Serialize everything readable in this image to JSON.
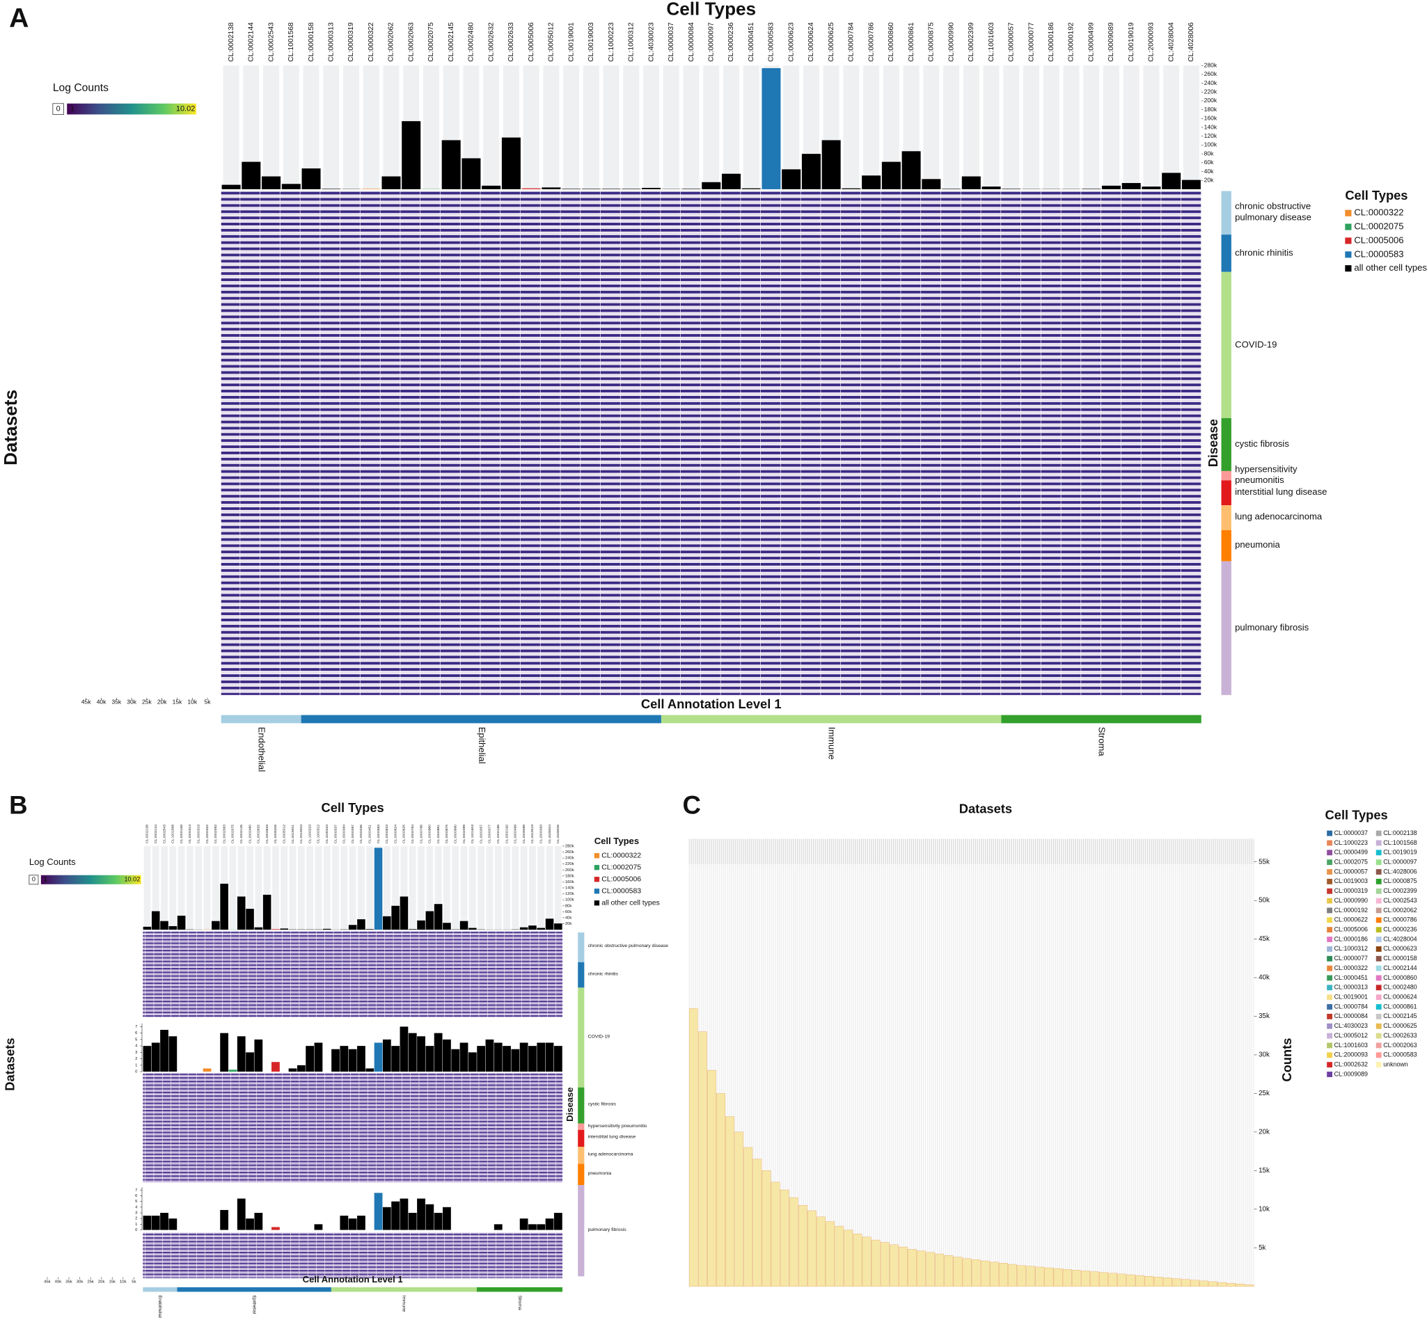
{
  "chart_data": [
    {
      "panel": "A",
      "type": "bar",
      "title": "Cell Types",
      "categories": [
        "CL:0002138",
        "CL:0002144",
        "CL:0002543",
        "CL:1001568",
        "CL:0000158",
        "CL:0000313",
        "CL:0000319",
        "CL:0000322",
        "CL:0002062",
        "CL:0002063",
        "CL:0002075",
        "CL:0002145",
        "CL:0002480",
        "CL:0002632",
        "CL:0002633",
        "CL:0005006",
        "CL:0005012",
        "CL:0019001",
        "CL:0019003",
        "CL:1000223",
        "CL:1000312",
        "CL:4030023",
        "CL:0000037",
        "CL:0000084",
        "CL:0000097",
        "CL:0000236",
        "CL:0000451",
        "CL:0000583",
        "CL:0000623",
        "CL:0000624",
        "CL:0000625",
        "CL:0000784",
        "CL:0000786",
        "CL:0000860",
        "CL:0000861",
        "CL:0000875",
        "CL:0000990",
        "CL:0002399",
        "CL:1001603",
        "CL:0000057",
        "CL:0000077",
        "CL:0000186",
        "CL:0000192",
        "CL:0000499",
        "CL:0009089",
        "CL:0019019",
        "CL:2000093",
        "CL:4028004",
        "CL:4028006"
      ],
      "values": [
        10000,
        62000,
        29000,
        12000,
        47000,
        1000,
        500,
        1000,
        29000,
        154000,
        500,
        111000,
        70000,
        8000,
        117000,
        2000,
        4000,
        1000,
        1000,
        1000,
        1000,
        3000,
        500,
        1000,
        16000,
        35000,
        2000,
        274000,
        45000,
        80000,
        111000,
        2000,
        31000,
        62000,
        86000,
        23000,
        1000,
        29000,
        6000,
        1000,
        500,
        500,
        500,
        1000,
        8000,
        14000,
        6000,
        37000,
        21000
      ],
      "ylim": [
        0,
        280000
      ],
      "yticks": [
        {
          "value": 20000,
          "label": "20k"
        },
        {
          "value": 40000,
          "label": "40k"
        },
        {
          "value": 60000,
          "label": "60k"
        },
        {
          "value": 80000,
          "label": "80k"
        },
        {
          "value": 100000,
          "label": "100k"
        },
        {
          "value": 120000,
          "label": "120k"
        },
        {
          "value": 140000,
          "label": "140k"
        },
        {
          "value": 160000,
          "label": "160k"
        },
        {
          "value": 180000,
          "label": "180k"
        },
        {
          "value": 200000,
          "label": "200k"
        },
        {
          "value": 220000,
          "label": "220k"
        },
        {
          "value": 240000,
          "label": "240k"
        },
        {
          "value": 260000,
          "label": "260k"
        },
        {
          "value": 280000,
          "label": "280k"
        }
      ],
      "ylabel": "Datasets",
      "xlabel": "Cell Annotation Level 1",
      "disease_label": "Disease",
      "xlim": [
        0,
        50000
      ],
      "xticks": [
        {
          "value": 45000,
          "label": "45k"
        },
        {
          "value": 40000,
          "label": "40k"
        },
        {
          "value": 35000,
          "label": "35k"
        },
        {
          "value": 30000,
          "label": "30k"
        },
        {
          "value": 25000,
          "label": "25k"
        },
        {
          "value": 20000,
          "label": "20k"
        },
        {
          "value": 15000,
          "label": "15k"
        },
        {
          "value": 10000,
          "label": "10k"
        },
        {
          "value": 5000,
          "label": "5k"
        }
      ],
      "colorbar": {
        "title": "Log Counts",
        "zero": 0,
        "min": 1,
        "max": 10.02
      },
      "legend": {
        "title": "Cell Types",
        "entries": [
          {
            "name": "CL:0000322",
            "color": "#f28e2b"
          },
          {
            "name": "CL:0002075",
            "color": "#2ca25f"
          },
          {
            "name": "CL:0005006",
            "color": "#d62728"
          },
          {
            "name": "CL:0000583",
            "color": "#1f77b4"
          },
          {
            "name": "all other cell types",
            "color": "#000000"
          }
        ]
      },
      "diseases": [
        {
          "name": "chronic obstructive pulmonary disease",
          "color": "#a6cee3",
          "n_datasets": 14
        },
        {
          "name": "chronic rhinitis",
          "color": "#1f78b4",
          "n_datasets": 12
        },
        {
          "name": "COVID-19",
          "color": "#b2df8a",
          "n_datasets": 47
        },
        {
          "name": "cystic fibrosis",
          "color": "#33a02c",
          "n_datasets": 17
        },
        {
          "name": "hypersensitivity pneumonitis",
          "color": "#fb9a99",
          "n_datasets": 3
        },
        {
          "name": "interstitial lung disease",
          "color": "#e31a1c",
          "n_datasets": 8
        },
        {
          "name": "lung adenocarcinoma",
          "color": "#fdbf6f",
          "n_datasets": 8
        },
        {
          "name": "pneumonia",
          "color": "#ff7f00",
          "n_datasets": 10
        },
        {
          "name": "pulmonary fibrosis",
          "color": "#cab2d6",
          "n_datasets": 43
        }
      ],
      "annotation": [
        {
          "name": "Endothelial",
          "color": "#a6cee3",
          "n_cell_types": 4
        },
        {
          "name": "Epithelial",
          "color": "#1f78b4",
          "n_cell_types": 18
        },
        {
          "name": "Immune",
          "color": "#b2df8a",
          "n_cell_types": 17
        },
        {
          "name": "Stroma",
          "color": "#33a02c",
          "n_cell_types": 10
        }
      ]
    },
    {
      "panel": "B",
      "type": "bar",
      "insets": [
        {
          "ylim": [
            0,
            7.5
          ],
          "yticks": [
            0,
            1,
            2,
            3,
            4,
            5,
            6,
            7
          ],
          "values": [
            4,
            4.5,
            6.5,
            5.5,
            0,
            0,
            0,
            0.5,
            0,
            6,
            0.3,
            5.5,
            3,
            5,
            0,
            1.5,
            0,
            0.5,
            1,
            4,
            4.5,
            0,
            3.5,
            4,
            3.5,
            4,
            0.5,
            4.5,
            5,
            4,
            7,
            6,
            5.5,
            4,
            6,
            5,
            3.5,
            4.5,
            3,
            4,
            5,
            4.5,
            4,
            3.5,
            4.5,
            4,
            4.5,
            4.5,
            4
          ]
        },
        {
          "ylim": [
            0,
            7.5
          ],
          "yticks": [
            0,
            1,
            2,
            3,
            4,
            5,
            6,
            7
          ],
          "values": [
            2.5,
            2.5,
            3,
            2,
            0,
            0,
            0,
            0,
            0,
            3.5,
            0,
            5.5,
            2,
            3,
            0,
            0.5,
            0,
            0,
            0,
            0,
            1,
            0,
            0,
            2.5,
            2,
            2.5,
            0,
            6.5,
            4,
            5,
            5.5,
            3,
            5.5,
            4.5,
            3,
            4,
            0,
            0,
            0,
            0,
            0,
            1,
            0,
            0,
            2,
            1,
            1,
            2,
            3
          ]
        }
      ]
    },
    {
      "panel": "C",
      "type": "bar",
      "title": "Datasets",
      "ylabel": "Counts",
      "color": "#f6e7a6",
      "values": [
        36000,
        33000,
        28000,
        25000,
        22000,
        20000,
        18000,
        16500,
        15000,
        13500,
        12500,
        11500,
        10500,
        9800,
        9000,
        8400,
        7800,
        7300,
        6800,
        6400,
        6000,
        5700,
        5400,
        5100,
        4800,
        4600,
        4400,
        4200,
        4000,
        3800,
        3600,
        3450,
        3300,
        3150,
        3000,
        2850,
        2700,
        2600,
        2500,
        2400,
        2300,
        2200,
        2100,
        2000,
        1900,
        1800,
        1700,
        1600,
        1500,
        1400,
        1300,
        1200,
        1100,
        1000,
        900,
        800,
        700,
        600,
        500,
        400,
        300,
        200
      ],
      "ylim": [
        0,
        58000
      ],
      "yticks": [
        {
          "value": 5000,
          "label": "5k"
        },
        {
          "value": 10000,
          "label": "10k"
        },
        {
          "value": 15000,
          "label": "15k"
        },
        {
          "value": 20000,
          "label": "20k"
        },
        {
          "value": 25000,
          "label": "25k"
        },
        {
          "value": 30000,
          "label": "30k"
        },
        {
          "value": 35000,
          "label": "35k"
        },
        {
          "value": 40000,
          "label": "40k"
        },
        {
          "value": 45000,
          "label": "45k"
        },
        {
          "value": 50000,
          "label": "50k"
        },
        {
          "value": 55000,
          "label": "55k"
        }
      ],
      "legend": {
        "title": "Cell Types",
        "entries": [
          {
            "name": "CL:0000037",
            "color": "#2b6ca3"
          },
          {
            "name": "CL:1000223",
            "color": "#e8875a"
          },
          {
            "name": "CL:0000499",
            "color": "#8f4fa0"
          },
          {
            "name": "CL:0002075",
            "color": "#4aa564"
          },
          {
            "name": "CL:0000057",
            "color": "#e8944a"
          },
          {
            "name": "CL:0019003",
            "color": "#a05a2c"
          },
          {
            "name": "CL:0000319",
            "color": "#c6362f"
          },
          {
            "name": "CL:0000990",
            "color": "#e6c84a"
          },
          {
            "name": "CL:0000192",
            "color": "#7f7f7f"
          },
          {
            "name": "CL:0000622",
            "color": "#f0d84a"
          },
          {
            "name": "CL:0005006",
            "color": "#e8823a"
          },
          {
            "name": "CL:0000186",
            "color": "#e377c2"
          },
          {
            "name": "CL:1000312",
            "color": "#9fb6d8"
          },
          {
            "name": "CL:0000077",
            "color": "#2e8b57"
          },
          {
            "name": "CL:0000322",
            "color": "#e8873a"
          },
          {
            "name": "CL:0000451",
            "color": "#3a9a5a"
          },
          {
            "name": "CL:0000313",
            "color": "#3cb4c4"
          },
          {
            "name": "CL:0019001",
            "color": "#f7e08a"
          },
          {
            "name": "CL:0000784",
            "color": "#3b6ea5"
          },
          {
            "name": "CL:0000084",
            "color": "#c0392b"
          },
          {
            "name": "CL:4030023",
            "color": "#9f8fc6"
          },
          {
            "name": "CL:0005012",
            "color": "#c9b0d8"
          },
          {
            "name": "CL:1001603",
            "color": "#b3c76a"
          },
          {
            "name": "CL:2000093",
            "color": "#f2d04a"
          },
          {
            "name": "CL:0002632",
            "color": "#d62728"
          },
          {
            "name": "CL:0009089",
            "color": "#6b3fa0"
          },
          {
            "name": "CL:0002138",
            "color": "#aaaaaa"
          },
          {
            "name": "CL:1001568",
            "color": "#c5b0d5"
          },
          {
            "name": "CL:0019019",
            "color": "#17becf"
          },
          {
            "name": "CL:0000097",
            "color": "#98df8a"
          },
          {
            "name": "CL:4028006",
            "color": "#8c564b"
          },
          {
            "name": "CL:0000875",
            "color": "#2ca02c"
          },
          {
            "name": "CL:0002399",
            "color": "#a4d49a"
          },
          {
            "name": "CL:0002543",
            "color": "#f7b6d2"
          },
          {
            "name": "CL:0002062",
            "color": "#c49c94"
          },
          {
            "name": "CL:0000786",
            "color": "#ff7f0e"
          },
          {
            "name": "CL:0000236",
            "color": "#bcbd22"
          },
          {
            "name": "CL:4028004",
            "color": "#aec7e8"
          },
          {
            "name": "CL:0000623",
            "color": "#8b4513"
          },
          {
            "name": "CL:0000158",
            "color": "#8c564b"
          },
          {
            "name": "CL:0002144",
            "color": "#9edae5"
          },
          {
            "name": "CL:0000860",
            "color": "#e377c2"
          },
          {
            "name": "CL:0002480",
            "color": "#c62828"
          },
          {
            "name": "CL:0000624",
            "color": "#f4a6c8"
          },
          {
            "name": "CL:0000861",
            "color": "#17becf"
          },
          {
            "name": "CL:0002145",
            "color": "#c7c7c7"
          },
          {
            "name": "CL:0000625",
            "color": "#e7ba52"
          },
          {
            "name": "CL:0002633",
            "color": "#dbdb8d"
          },
          {
            "name": "CL:0002063",
            "color": "#f0a0a0"
          },
          {
            "name": "CL:0000583",
            "color": "#ff9896"
          },
          {
            "name": "unknown",
            "color": "#fff3b0"
          }
        ]
      }
    }
  ]
}
